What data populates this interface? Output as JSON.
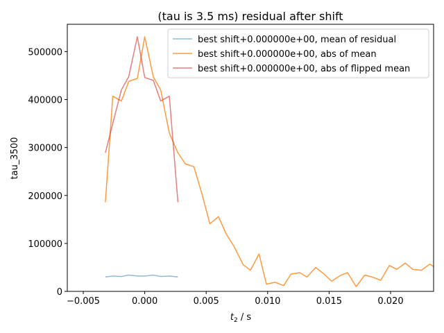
{
  "chart_data": {
    "type": "line",
    "title": "(tau is 3.5 ms) residual after shift",
    "xlabel_base": "t",
    "xlabel_sub": "2",
    "xlabel_rest": " / s",
    "ylabel": "tau_3500",
    "xlim": [
      -0.0063,
      0.0235
    ],
    "ylim": [
      0,
      557000
    ],
    "xticks": [
      -0.005,
      0.0,
      0.005,
      0.01,
      0.015,
      0.02
    ],
    "xtick_labels": [
      "−0.005",
      "0.000",
      "0.005",
      "0.010",
      "0.015",
      "0.020"
    ],
    "yticks": [
      0,
      100000,
      200000,
      300000,
      400000,
      500000
    ],
    "ytick_labels": [
      "0",
      "100000",
      "200000",
      "300000",
      "400000",
      "500000"
    ],
    "legend_position": "upper right",
    "grid": false,
    "series": [
      {
        "name": "best shift+0.000000e+00, mean of residual",
        "color": "#1f77b4",
        "opacity": 0.5,
        "x": [
          -0.0032,
          -0.0026,
          -0.0019,
          -0.0013,
          -0.0006,
          0.0,
          0.0007,
          0.0013,
          0.002,
          0.0027
        ],
        "y": [
          30000,
          32000,
          31000,
          34000,
          32000,
          32000,
          34000,
          31000,
          32000,
          30000
        ]
      },
      {
        "name": "best shift+0.000000e+00, abs of mean",
        "color": "#ff7f0e",
        "opacity": 0.8,
        "x": [
          -0.0032,
          -0.0026,
          -0.0019,
          -0.0013,
          -0.0006,
          0.0,
          0.0007,
          0.0013,
          0.002,
          0.0027,
          0.0033,
          0.004,
          0.0046,
          0.0053,
          0.006,
          0.0066,
          0.0073,
          0.008,
          0.0086,
          0.0093,
          0.0099,
          0.0106,
          0.0113,
          0.0119,
          0.0126,
          0.0132,
          0.0139,
          0.0146,
          0.0152,
          0.0159,
          0.0165,
          0.0172,
          0.0179,
          0.0185,
          0.0192,
          0.0199,
          0.0205,
          0.0212,
          0.0218,
          0.0225,
          0.0232,
          0.0238
        ],
        "y": [
          186000,
          407000,
          397000,
          438000,
          444000,
          531000,
          447000,
          420000,
          330000,
          289000,
          266000,
          260000,
          208000,
          141000,
          156000,
          121000,
          92000,
          56000,
          44000,
          78000,
          15000,
          19000,
          12000,
          36000,
          39000,
          30000,
          50000,
          36000,
          21000,
          33000,
          39000,
          10000,
          34000,
          30000,
          23000,
          54000,
          46000,
          59000,
          46000,
          44000,
          57000,
          46000
        ]
      },
      {
        "name": "best shift+0.000000e+00, abs of flipped mean",
        "color": "#d62728",
        "opacity": 0.6,
        "x": [
          -0.0032,
          -0.0026,
          -0.0019,
          -0.0013,
          -0.0006,
          0.0,
          0.0007,
          0.0013,
          0.002,
          0.0027
        ],
        "y": [
          289000,
          350000,
          420000,
          448000,
          531000,
          446000,
          440000,
          397000,
          407000,
          186000
        ]
      }
    ]
  }
}
